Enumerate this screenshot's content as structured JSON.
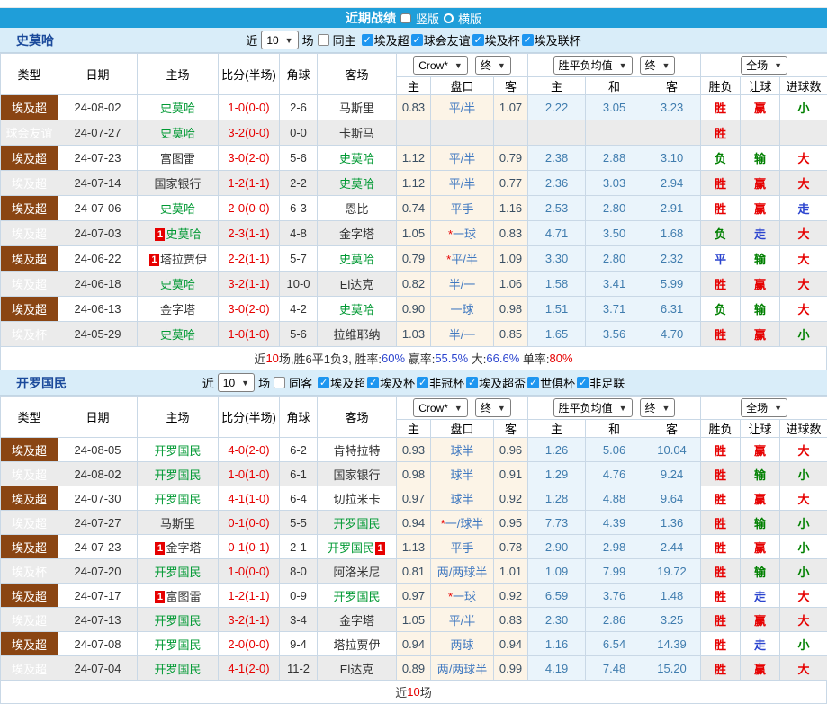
{
  "colors": {
    "title_bar": "#1f9ed9",
    "section_band": "#d9edf9",
    "checkbox_checked": "#1e96f0",
    "league_super": "#8a4513",
    "league_friendly": "#17a2a2",
    "league_cup": "#175018",
    "subject_team_green": "#009933",
    "score_red": "#e60000",
    "win_red": "#e60000",
    "lose_green": "#008000",
    "draw_blue": "#2b44cf",
    "odds_col_bg": "#fcf4e7",
    "mean_col_bg": "#eaf4fb",
    "alt_row_gray": "#ebebeb"
  },
  "title_bar": {
    "title": "近期战绩",
    "vertical_label": "竖版",
    "horizontal_label": "横版"
  },
  "table_header": {
    "type": "类型",
    "date": "日期",
    "home": "主场",
    "score": "比分(半场)",
    "corner": "角球",
    "away": "客场",
    "odds_source": "Crow*",
    "odds_stage": "终",
    "mean_source": "胜平负均值",
    "mean_stage": "终",
    "scope": "全场",
    "sub": [
      "主",
      "盘口",
      "客",
      "主",
      "和",
      "客",
      "胜负",
      "让球",
      "进球数"
    ]
  },
  "sections": [
    {
      "team": "史莫哈",
      "filters": {
        "near": "近",
        "count": "10",
        "games": "场",
        "same": "同主",
        "leagues": [
          "埃及超",
          "球会友谊",
          "埃及杯",
          "埃及联杯"
        ]
      },
      "rows": [
        {
          "league": "埃及超",
          "date": "24-08-02",
          "home": "史莫哈",
          "home_subject": true,
          "home_badge": "",
          "score": "1-0",
          "half": "(0-0)",
          "corner": "2-6",
          "away": "马斯里",
          "away_subject": false,
          "away_badge": "",
          "o1": "0.83",
          "hcap": "平/半",
          "o2": "1.07",
          "m1": "2.22",
          "m2": "3.05",
          "m3": "3.23",
          "r1": "胜",
          "r2": "赢",
          "r3": "小"
        },
        {
          "league": "球会友谊",
          "date": "24-07-27",
          "home": "史莫哈",
          "home_subject": true,
          "home_badge": "",
          "score": "3-2",
          "half": "(0-0)",
          "corner": "0-0",
          "away": "卡斯马",
          "away_subject": false,
          "away_badge": "",
          "o1": "",
          "hcap": "",
          "o2": "",
          "m1": "",
          "m2": "",
          "m3": "",
          "r1": "胜",
          "r2": "",
          "r3": ""
        },
        {
          "league": "埃及超",
          "date": "24-07-23",
          "home": "富图雷",
          "home_subject": false,
          "home_badge": "",
          "score": "3-0",
          "half": "(2-0)",
          "corner": "5-6",
          "away": "史莫哈",
          "away_subject": true,
          "away_badge": "",
          "o1": "1.12",
          "hcap": "平/半",
          "o2": "0.79",
          "m1": "2.38",
          "m2": "2.88",
          "m3": "3.10",
          "r1": "负",
          "r2": "输",
          "r3": "大"
        },
        {
          "league": "埃及超",
          "date": "24-07-14",
          "home": "国家银行",
          "home_subject": false,
          "home_badge": "",
          "score": "1-2",
          "half": "(1-1)",
          "corner": "2-2",
          "away": "史莫哈",
          "away_subject": true,
          "away_badge": "",
          "o1": "1.12",
          "hcap": "平/半",
          "o2": "0.77",
          "m1": "2.36",
          "m2": "3.03",
          "m3": "2.94",
          "r1": "胜",
          "r2": "赢",
          "r3": "大"
        },
        {
          "league": "埃及超",
          "date": "24-07-06",
          "home": "史莫哈",
          "home_subject": true,
          "home_badge": "",
          "score": "2-0",
          "half": "(0-0)",
          "corner": "6-3",
          "away": "恩比",
          "away_subject": false,
          "away_badge": "",
          "o1": "0.74",
          "hcap": "平手",
          "o2": "1.16",
          "m1": "2.53",
          "m2": "2.80",
          "m3": "2.91",
          "r1": "胜",
          "r2": "赢",
          "r3": "走"
        },
        {
          "league": "埃及超",
          "date": "24-07-03",
          "home": "史莫哈",
          "home_subject": true,
          "home_badge": "1",
          "score": "2-3",
          "half": "(1-1)",
          "corner": "4-8",
          "away": "金字塔",
          "away_subject": false,
          "away_badge": "",
          "o1": "1.05",
          "hcap": "*一球",
          "o2": "0.83",
          "m1": "4.71",
          "m2": "3.50",
          "m3": "1.68",
          "r1": "负",
          "r2": "走",
          "r3": "大"
        },
        {
          "league": "埃及超",
          "date": "24-06-22",
          "home": "塔拉贾伊",
          "home_subject": false,
          "home_badge": "1",
          "score": "2-2",
          "half": "(1-1)",
          "corner": "5-7",
          "away": "史莫哈",
          "away_subject": true,
          "away_badge": "",
          "o1": "0.79",
          "hcap": "*平/半",
          "o2": "1.09",
          "m1": "3.30",
          "m2": "2.80",
          "m3": "2.32",
          "r1": "平",
          "r2": "输",
          "r3": "大"
        },
        {
          "league": "埃及超",
          "date": "24-06-18",
          "home": "史莫哈",
          "home_subject": true,
          "home_badge": "",
          "score": "3-2",
          "half": "(1-1)",
          "corner": "10-0",
          "away": "El达克",
          "away_subject": false,
          "away_badge": "",
          "o1": "0.82",
          "hcap": "半/一",
          "o2": "1.06",
          "m1": "1.58",
          "m2": "3.41",
          "m3": "5.99",
          "r1": "胜",
          "r2": "赢",
          "r3": "大"
        },
        {
          "league": "埃及超",
          "date": "24-06-13",
          "home": "金字塔",
          "home_subject": false,
          "home_badge": "",
          "score": "3-0",
          "half": "(2-0)",
          "corner": "4-2",
          "away": "史莫哈",
          "away_subject": true,
          "away_badge": "",
          "o1": "0.90",
          "hcap": "一球",
          "o2": "0.98",
          "m1": "1.51",
          "m2": "3.71",
          "m3": "6.31",
          "r1": "负",
          "r2": "输",
          "r3": "大"
        },
        {
          "league": "埃及杯",
          "date": "24-05-29",
          "home": "史莫哈",
          "home_subject": true,
          "home_badge": "",
          "score": "1-0",
          "half": "(1-0)",
          "corner": "5-6",
          "away": "拉维耶纳",
          "away_subject": false,
          "away_badge": "",
          "o1": "1.03",
          "hcap": "半/一",
          "o2": "0.85",
          "m1": "1.65",
          "m2": "3.56",
          "m3": "4.70",
          "r1": "胜",
          "r2": "赢",
          "r3": "小"
        }
      ],
      "summary": [
        {
          "t": "近",
          "c": "#333333"
        },
        {
          "t": "10",
          "c": "#e60000"
        },
        {
          "t": "场,胜6平1负3, 胜率:",
          "c": "#333333"
        },
        {
          "t": "60%",
          "c": "#2b44cf"
        },
        {
          "t": " 赢率:",
          "c": "#333333"
        },
        {
          "t": "55.5%",
          "c": "#2b44cf"
        },
        {
          "t": " 大:",
          "c": "#333333"
        },
        {
          "t": "66.6%",
          "c": "#2b44cf"
        },
        {
          "t": " 单率:",
          "c": "#333333"
        },
        {
          "t": "80%",
          "c": "#e60000"
        }
      ]
    },
    {
      "team": "开罗国民",
      "filters": {
        "near": "近",
        "count": "10",
        "games": "场",
        "same": "同客",
        "leagues": [
          "埃及超",
          "埃及杯",
          "非冠杯",
          "埃及超盃",
          "世俱杯",
          "非足联"
        ]
      },
      "rows": [
        {
          "league": "埃及超",
          "date": "24-08-05",
          "home": "开罗国民",
          "home_subject": true,
          "home_badge": "",
          "score": "4-0",
          "half": "(2-0)",
          "corner": "6-2",
          "away": "肯特拉特",
          "away_subject": false,
          "away_badge": "",
          "o1": "0.93",
          "hcap": "球半",
          "o2": "0.96",
          "m1": "1.26",
          "m2": "5.06",
          "m3": "10.04",
          "r1": "胜",
          "r2": "赢",
          "r3": "大"
        },
        {
          "league": "埃及超",
          "date": "24-08-02",
          "home": "开罗国民",
          "home_subject": true,
          "home_badge": "",
          "score": "1-0",
          "half": "(1-0)",
          "corner": "6-1",
          "away": "国家银行",
          "away_subject": false,
          "away_badge": "",
          "o1": "0.98",
          "hcap": "球半",
          "o2": "0.91",
          "m1": "1.29",
          "m2": "4.76",
          "m3": "9.24",
          "r1": "胜",
          "r2": "输",
          "r3": "小"
        },
        {
          "league": "埃及超",
          "date": "24-07-30",
          "home": "开罗国民",
          "home_subject": true,
          "home_badge": "",
          "score": "4-1",
          "half": "(1-0)",
          "corner": "6-4",
          "away": "切拉米卡",
          "away_subject": false,
          "away_badge": "",
          "o1": "0.97",
          "hcap": "球半",
          "o2": "0.92",
          "m1": "1.28",
          "m2": "4.88",
          "m3": "9.64",
          "r1": "胜",
          "r2": "赢",
          "r3": "大"
        },
        {
          "league": "埃及超",
          "date": "24-07-27",
          "home": "马斯里",
          "home_subject": false,
          "home_badge": "",
          "score": "0-1",
          "half": "(0-0)",
          "corner": "5-5",
          "away": "开罗国民",
          "away_subject": true,
          "away_badge": "",
          "o1": "0.94",
          "hcap": "*一/球半",
          "o2": "0.95",
          "m1": "7.73",
          "m2": "4.39",
          "m3": "1.36",
          "r1": "胜",
          "r2": "输",
          "r3": "小"
        },
        {
          "league": "埃及超",
          "date": "24-07-23",
          "home": "金字塔",
          "home_subject": false,
          "home_badge": "1",
          "score": "0-1",
          "half": "(0-1)",
          "corner": "2-1",
          "away": "开罗国民",
          "away_subject": true,
          "away_badge": "1",
          "o1": "1.13",
          "hcap": "平手",
          "o2": "0.78",
          "m1": "2.90",
          "m2": "2.98",
          "m3": "2.44",
          "r1": "胜",
          "r2": "赢",
          "r3": "小"
        },
        {
          "league": "埃及杯",
          "date": "24-07-20",
          "home": "开罗国民",
          "home_subject": true,
          "home_badge": "",
          "score": "1-0",
          "half": "(0-0)",
          "corner": "8-0",
          "away": "阿洛米尼",
          "away_subject": false,
          "away_badge": "",
          "o1": "0.81",
          "hcap": "两/两球半",
          "o2": "1.01",
          "m1": "1.09",
          "m2": "7.99",
          "m3": "19.72",
          "r1": "胜",
          "r2": "输",
          "r3": "小"
        },
        {
          "league": "埃及超",
          "date": "24-07-17",
          "home": "富图雷",
          "home_subject": false,
          "home_badge": "1",
          "score": "1-2",
          "half": "(1-1)",
          "corner": "0-9",
          "away": "开罗国民",
          "away_subject": true,
          "away_badge": "",
          "o1": "0.97",
          "hcap": "*一球",
          "o2": "0.92",
          "m1": "6.59",
          "m2": "3.76",
          "m3": "1.48",
          "r1": "胜",
          "r2": "走",
          "r3": "大"
        },
        {
          "league": "埃及超",
          "date": "24-07-13",
          "home": "开罗国民",
          "home_subject": true,
          "home_badge": "",
          "score": "3-2",
          "half": "(1-1)",
          "corner": "3-4",
          "away": "金字塔",
          "away_subject": false,
          "away_badge": "",
          "o1": "1.05",
          "hcap": "平/半",
          "o2": "0.83",
          "m1": "2.30",
          "m2": "2.86",
          "m3": "3.25",
          "r1": "胜",
          "r2": "赢",
          "r3": "大"
        },
        {
          "league": "埃及超",
          "date": "24-07-08",
          "home": "开罗国民",
          "home_subject": true,
          "home_badge": "",
          "score": "2-0",
          "half": "(0-0)",
          "corner": "9-4",
          "away": "塔拉贾伊",
          "away_subject": false,
          "away_badge": "",
          "o1": "0.94",
          "hcap": "两球",
          "o2": "0.94",
          "m1": "1.16",
          "m2": "6.54",
          "m3": "14.39",
          "r1": "胜",
          "r2": "走",
          "r3": "小"
        },
        {
          "league": "埃及超",
          "date": "24-07-04",
          "home": "开罗国民",
          "home_subject": true,
          "home_badge": "",
          "score": "4-1",
          "half": "(2-0)",
          "corner": "11-2",
          "away": "El达克",
          "away_subject": false,
          "away_badge": "",
          "o1": "0.89",
          "hcap": "两/两球半",
          "o2": "0.99",
          "m1": "4.19",
          "m2": "7.48",
          "m3": "15.20",
          "r1": "胜",
          "r2": "赢",
          "r3": "大"
        }
      ],
      "summary": [
        {
          "t": "近",
          "c": "#333333"
        },
        {
          "t": "10",
          "c": "#e60000"
        },
        {
          "t": "场",
          "c": "#333333"
        }
      ]
    }
  ]
}
